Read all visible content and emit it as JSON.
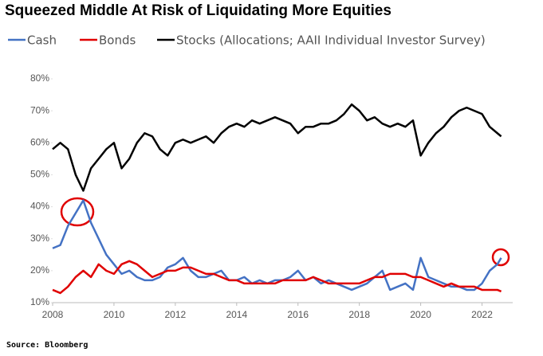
{
  "chart_data": {
    "type": "line",
    "title": "Squeezed Middle At Risk of Liquidating More Equities",
    "source": "Source: Bloomberg",
    "x": [
      2008,
      2008.25,
      2008.5,
      2008.75,
      2009,
      2009.25,
      2009.5,
      2009.75,
      2010,
      2010.25,
      2010.5,
      2010.75,
      2011,
      2011.25,
      2011.5,
      2011.75,
      2012,
      2012.25,
      2012.5,
      2012.75,
      2013,
      2013.25,
      2013.5,
      2013.75,
      2014,
      2014.25,
      2014.5,
      2014.75,
      2015,
      2015.25,
      2015.5,
      2015.75,
      2016,
      2016.25,
      2016.5,
      2016.75,
      2017,
      2017.25,
      2017.5,
      2017.75,
      2018,
      2018.25,
      2018.5,
      2018.75,
      2019,
      2019.25,
      2019.5,
      2019.75,
      2020,
      2020.25,
      2020.5,
      2020.75,
      2021,
      2021.25,
      2021.5,
      2021.75,
      2022,
      2022.25,
      2022.5,
      2022.625
    ],
    "series": [
      {
        "name": "Cash",
        "color": "#4472c4",
        "values": [
          27,
          28,
          34,
          38,
          42,
          35,
          30,
          25,
          22,
          19,
          20,
          18,
          17,
          17,
          18,
          21,
          22,
          24,
          20,
          18,
          18,
          19,
          20,
          17,
          17,
          18,
          16,
          17,
          16,
          17,
          17,
          18,
          20,
          17,
          18,
          16,
          17,
          16,
          15,
          14,
          15,
          16,
          18,
          20,
          14,
          15,
          16,
          14,
          24,
          18,
          17,
          16,
          15,
          15,
          14,
          14,
          16,
          20,
          22,
          24
        ]
      },
      {
        "name": "Bonds",
        "color": "#e00000",
        "values": [
          14,
          13,
          15,
          18,
          20,
          18,
          22,
          20,
          19,
          22,
          23,
          22,
          20,
          18,
          19,
          20,
          20,
          21,
          21,
          20,
          19,
          19,
          18,
          17,
          17,
          16,
          16,
          16,
          16,
          16,
          17,
          17,
          17,
          17,
          18,
          17,
          16,
          16,
          16,
          16,
          16,
          17,
          18,
          18,
          19,
          19,
          19,
          18,
          18,
          17,
          16,
          15,
          16,
          15,
          15,
          15,
          14,
          14,
          14,
          13.5
        ]
      },
      {
        "name": "Stocks (Allocations; AAII Individual Investor Survey)",
        "color": "#000000",
        "values": [
          58,
          60,
          58,
          50,
          45,
          52,
          55,
          58,
          60,
          52,
          55,
          60,
          63,
          62,
          58,
          56,
          60,
          61,
          60,
          61,
          62,
          60,
          63,
          65,
          66,
          65,
          67,
          66,
          67,
          68,
          67,
          66,
          63,
          65,
          65,
          66,
          66,
          67,
          69,
          72,
          70,
          67,
          68,
          66,
          65,
          66,
          65,
          67,
          56,
          60,
          63,
          65,
          68,
          70,
          71,
          70,
          69,
          65,
          63,
          62
        ]
      }
    ],
    "xlim": [
      2008,
      2023
    ],
    "xticks": [
      2008,
      2010,
      2012,
      2014,
      2016,
      2018,
      2020,
      2022
    ],
    "ylim": [
      10,
      80
    ],
    "yticks": [
      {
        "value": 10,
        "label": "10%"
      },
      {
        "value": 20,
        "label": "20%"
      },
      {
        "value": 30,
        "label": "30%"
      },
      {
        "value": 40,
        "label": "40%"
      },
      {
        "value": 50,
        "label": "50%"
      },
      {
        "value": 60,
        "label": "60%"
      },
      {
        "value": 70,
        "label": "70%"
      },
      {
        "value": 80,
        "label": "80%"
      }
    ],
    "grid": false
  }
}
